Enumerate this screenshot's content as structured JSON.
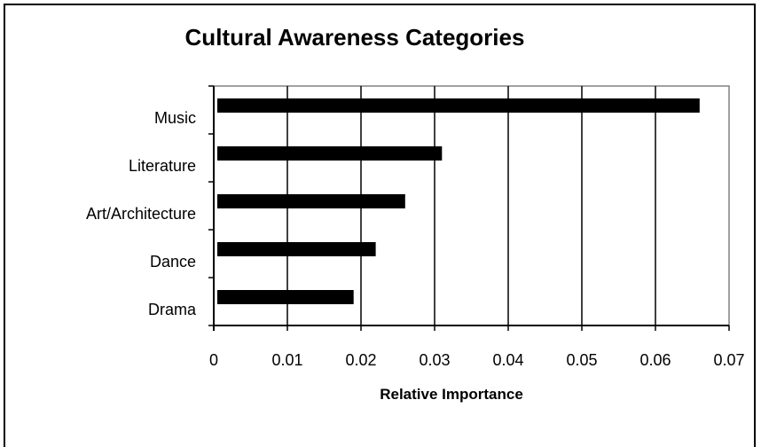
{
  "chart_data": {
    "type": "bar",
    "orientation": "horizontal",
    "title": "Cultural Awareness Categories",
    "xlabel": "Relative Importance",
    "ylabel": "",
    "categories": [
      "Music",
      "Literature",
      "Art/Architecture",
      "Dance",
      "Drama"
    ],
    "values": [
      0.066,
      0.031,
      0.026,
      0.022,
      0.019
    ],
    "xlim": [
      0,
      0.07
    ],
    "xticks": [
      "0",
      "0.01",
      "0.02",
      "0.03",
      "0.04",
      "0.05",
      "0.06",
      "0.07"
    ],
    "grid": "vertical",
    "legend": "none",
    "bar_color": "#000000"
  }
}
